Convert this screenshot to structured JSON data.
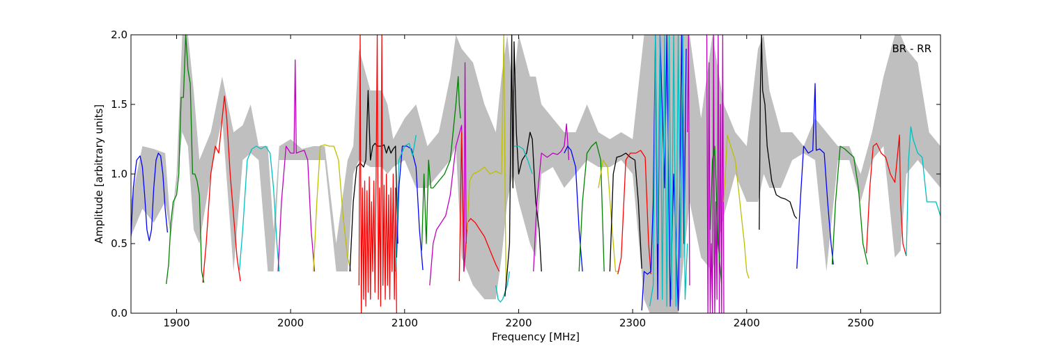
{
  "chart_data": {
    "type": "line",
    "annotation": "BR - RR",
    "xlabel": "Frequency [MHz]",
    "ylabel": "Amplitude [arbitrary units]",
    "xlim": [
      1860,
      2570
    ],
    "ylim": [
      0.0,
      2.0
    ],
    "x_ticks": [
      1900,
      2000,
      2100,
      2200,
      2300,
      2400,
      2500
    ],
    "y_ticks": [
      0.0,
      0.5,
      1.0,
      1.5,
      2.0
    ],
    "x_tick_labels": [
      "1900",
      "2000",
      "2100",
      "2200",
      "2300",
      "2400",
      "2500"
    ],
    "y_tick_labels": [
      "0.0",
      "0.5",
      "1.0",
      "1.5",
      "2.0"
    ],
    "grid": false,
    "colors": {
      "envelope": "#bfbfbf",
      "blue": "#0000ff",
      "green": "#008000",
      "red": "#ff0000",
      "cyan": "#00bfbf",
      "magenta": "#bf00bf",
      "yellow": "#bfbf00",
      "black": "#000000"
    },
    "envelope": {
      "x": [
        1860,
        1870,
        1880,
        1890,
        1895,
        1900,
        1905,
        1910,
        1915,
        1920,
        1930,
        1940,
        1950,
        1958,
        1965,
        1972,
        1980,
        1985,
        1990,
        2000,
        2010,
        2020,
        2030,
        2040,
        2050,
        2055,
        2060,
        2070,
        2080,
        2085,
        2090,
        2100,
        2110,
        2120,
        2130,
        2140,
        2145,
        2150,
        2160,
        2170,
        2180,
        2185,
        2190,
        2195,
        2200,
        2210,
        2215,
        2220,
        2230,
        2240,
        2250,
        2260,
        2270,
        2280,
        2290,
        2300,
        2310,
        2315,
        2320,
        2330,
        2340,
        2350,
        2360,
        2370,
        2380,
        2390,
        2400,
        2410,
        2415,
        2420,
        2430,
        2440,
        2450,
        2460,
        2470,
        2480,
        2490,
        2500,
        2510,
        2520,
        2530,
        2535,
        2540,
        2550,
        2560,
        2570
      ],
      "upper": [
        0.8,
        1.2,
        1.18,
        1.15,
        0.6,
        1.0,
        2.0,
        2.0,
        1.6,
        1.1,
        1.3,
        1.7,
        1.3,
        1.35,
        1.5,
        1.2,
        1.2,
        0.6,
        1.2,
        1.25,
        1.18,
        1.2,
        1.2,
        0.5,
        1.1,
        1.2,
        1.9,
        1.6,
        1.6,
        1.5,
        1.25,
        1.4,
        1.5,
        1.2,
        1.3,
        1.7,
        2.0,
        1.9,
        1.8,
        1.5,
        1.3,
        1.7,
        2.0,
        1.6,
        2.0,
        1.7,
        1.7,
        1.5,
        1.4,
        1.3,
        1.3,
        1.5,
        1.3,
        1.25,
        1.3,
        1.25,
        2.0,
        2.0,
        2.0,
        2.0,
        2.0,
        2.0,
        1.4,
        2.0,
        1.5,
        1.3,
        1.2,
        1.9,
        2.0,
        1.6,
        1.3,
        1.3,
        1.2,
        1.4,
        1.3,
        1.2,
        1.2,
        1.0,
        1.3,
        1.7,
        2.0,
        2.0,
        1.9,
        1.8,
        1.3,
        1.2
      ],
      "lower": [
        0.55,
        0.75,
        0.65,
        0.8,
        0.55,
        0.9,
        1.3,
        1.2,
        0.6,
        0.5,
        1.0,
        1.4,
        0.3,
        1.1,
        1.15,
        1.1,
        0.3,
        0.3,
        1.1,
        1.1,
        1.1,
        1.1,
        1.1,
        0.3,
        0.3,
        1.0,
        1.1,
        1.05,
        1.05,
        1.0,
        1.05,
        1.1,
        0.9,
        0.9,
        1.0,
        1.1,
        1.2,
        0.4,
        0.2,
        0.1,
        0.1,
        0.4,
        0.8,
        1.0,
        0.8,
        0.5,
        0.4,
        1.0,
        1.05,
        0.9,
        1.0,
        1.1,
        1.05,
        1.05,
        1.1,
        1.0,
        0.1,
        0.0,
        0.0,
        0.0,
        0.0,
        0.8,
        0.4,
        0.3,
        0.7,
        1.0,
        0.8,
        0.8,
        1.0,
        0.9,
        0.9,
        1.1,
        1.15,
        1.1,
        0.3,
        1.1,
        1.1,
        0.8,
        1.1,
        1.2,
        0.4,
        0.45,
        1.0,
        1.1,
        1.0,
        0.9
      ]
    },
    "series": [
      {
        "color": "blue",
        "x": [
          1860,
          1862,
          1865,
          1868,
          1870,
          1872,
          1874,
          1876,
          1878,
          1880,
          1882,
          1884,
          1886,
          1888,
          1890,
          1892
        ],
        "y": [
          0.55,
          0.9,
          1.1,
          1.13,
          1.05,
          0.85,
          0.6,
          0.52,
          0.6,
          0.9,
          1.1,
          1.15,
          1.13,
          1.0,
          0.75,
          0.58
        ]
      },
      {
        "color": "green",
        "x": [
          1891,
          1893,
          1895,
          1897,
          1900,
          1902,
          1904,
          1906,
          1908,
          1910,
          1912,
          1914,
          1916,
          1918,
          1920,
          1922,
          1924
        ],
        "y": [
          0.21,
          0.35,
          0.65,
          0.8,
          0.85,
          1.0,
          1.55,
          1.55,
          2.0,
          1.75,
          1.65,
          1.0,
          1.0,
          0.95,
          0.85,
          0.3,
          0.22
        ]
      },
      {
        "color": "red",
        "x": [
          1923,
          1926,
          1930,
          1934,
          1937,
          1940,
          1942,
          1944,
          1947,
          1950,
          1953,
          1956
        ],
        "y": [
          0.22,
          0.5,
          1.0,
          1.2,
          1.15,
          1.4,
          1.56,
          1.4,
          1.0,
          0.7,
          0.4,
          0.23
        ]
      },
      {
        "color": "cyan",
        "x": [
          1955,
          1958,
          1962,
          1966,
          1970,
          1974,
          1978,
          1982,
          1985,
          1988,
          1990
        ],
        "y": [
          0.3,
          0.6,
          1.1,
          1.18,
          1.2,
          1.18,
          1.2,
          1.15,
          0.9,
          0.5,
          0.3
        ]
      },
      {
        "color": "magenta",
        "x": [
          1989,
          1992,
          1996,
          2000,
          2003,
          2004,
          2005,
          2008,
          2012,
          2015,
          2018,
          2021
        ],
        "y": [
          0.3,
          0.8,
          1.2,
          1.15,
          1.15,
          1.82,
          1.15,
          1.16,
          1.17,
          1.1,
          0.6,
          0.3
        ]
      },
      {
        "color": "yellow",
        "x": [
          2020,
          2023,
          2026,
          2030,
          2034,
          2038,
          2042,
          2046,
          2050,
          2053
        ],
        "y": [
          0.3,
          0.8,
          1.2,
          1.21,
          1.2,
          1.2,
          1.1,
          0.7,
          0.4,
          0.3
        ]
      },
      {
        "color": "black",
        "x": [
          2052,
          2055,
          2058,
          2061,
          2064,
          2066,
          2068,
          2070,
          2072,
          2074,
          2076,
          2078,
          2080,
          2082,
          2084,
          2086,
          2088,
          2090,
          2092,
          2094
        ],
        "y": [
          0.3,
          0.8,
          1.05,
          1.08,
          1.05,
          1.1,
          1.6,
          1.1,
          1.2,
          1.22,
          1.2,
          1.2,
          1.2,
          1.21,
          1.15,
          1.2,
          1.15,
          1.18,
          1.2,
          0.5
        ]
      },
      {
        "color": "red",
        "x": [
          2060,
          2061,
          2062,
          2063,
          2064,
          2065,
          2066,
          2067,
          2068,
          2069,
          2070,
          2071,
          2072,
          2073,
          2074,
          2075,
          2076,
          2077,
          2078,
          2079,
          2080,
          2081,
          2082,
          2083,
          2084,
          2085,
          2086,
          2087,
          2088,
          2089,
          2090,
          2091,
          2092,
          2093
        ],
        "y": [
          0.2,
          2.0,
          0.0,
          0.9,
          0.1,
          0.95,
          0.05,
          0.88,
          0.15,
          0.98,
          0.1,
          0.8,
          0.3,
          0.95,
          0.15,
          1.0,
          2.0,
          0.1,
          0.9,
          0.05,
          2.0,
          0.2,
          0.92,
          0.1,
          1.0,
          0.2,
          0.85,
          0.1,
          0.9,
          0.3,
          1.0,
          0.1,
          0.9,
          0.0
        ]
      },
      {
        "color": "blue",
        "x": [
          2093,
          2095,
          2098,
          2102,
          2106,
          2110,
          2113,
          2116
        ],
        "y": [
          0.4,
          0.9,
          1.2,
          1.2,
          1.18,
          1.05,
          0.6,
          0.31
        ]
      },
      {
        "color": "cyan",
        "x": [
          2092,
          2095,
          2100,
          2104,
          2107,
          2110
        ],
        "y": [
          0.3,
          1.1,
          1.2,
          1.22,
          1.13,
          1.28
        ]
      },
      {
        "color": "green",
        "x": [
          2115,
          2117,
          2119,
          2121,
          2123,
          2125,
          2127,
          2130,
          2135,
          2140,
          2145,
          2147,
          2148,
          2149
        ],
        "y": [
          0.45,
          1.0,
          0.5,
          1.1,
          0.9,
          0.9,
          0.92,
          0.95,
          1.0,
          1.1,
          1.5,
          1.7,
          1.5,
          1.4
        ]
      },
      {
        "color": "magenta",
        "x": [
          2122,
          2125,
          2128,
          2132,
          2136,
          2140,
          2145,
          2150,
          2152
        ],
        "y": [
          0.2,
          0.5,
          0.6,
          0.65,
          0.7,
          0.85,
          1.2,
          1.35,
          0.3
        ]
      },
      {
        "color": "red",
        "x": [
          2148,
          2150,
          2152,
          2153,
          2155,
          2158,
          2162,
          2166,
          2170,
          2175,
          2180,
          2183
        ],
        "y": [
          0.23,
          1.3,
          0.3,
          0.4,
          0.65,
          0.68,
          0.65,
          0.6,
          0.55,
          0.45,
          0.35,
          0.3
        ]
      },
      {
        "color": "magenta",
        "x": [
          2152,
          2153,
          2154
        ],
        "y": [
          0.3,
          1.8,
          0.5
        ]
      },
      {
        "color": "yellow",
        "x": [
          2155,
          2157,
          2160,
          2165,
          2170,
          2175,
          2180,
          2185,
          2187,
          2188,
          2189
        ],
        "y": [
          0.6,
          0.95,
          1.0,
          1.02,
          1.05,
          1.0,
          1.02,
          1.0,
          2.0,
          1.0,
          0.2
        ]
      },
      {
        "color": "cyan",
        "x": [
          2180,
          2182,
          2184,
          2186,
          2188,
          2190,
          2192
        ],
        "y": [
          0.2,
          0.1,
          0.08,
          0.1,
          0.15,
          0.2,
          0.3
        ]
      },
      {
        "color": "black",
        "x": [
          2188,
          2190,
          2192,
          2194,
          2195,
          2196,
          2198,
          2200,
          2203,
          2207,
          2210,
          2212,
          2215,
          2218,
          2220
        ],
        "y": [
          0.12,
          0.3,
          0.5,
          2.0,
          0.9,
          1.95,
          1.3,
          1.0,
          1.1,
          1.15,
          1.3,
          1.25,
          0.8,
          0.6,
          0.3
        ]
      },
      {
        "color": "cyan",
        "x": [
          2196,
          2200,
          2204,
          2208,
          2212
        ],
        "y": [
          1.2,
          1.2,
          1.18,
          1.1,
          1.0
        ]
      },
      {
        "color": "magenta",
        "x": [
          2213,
          2216,
          2220,
          2225,
          2230,
          2234,
          2237,
          2240,
          2242,
          2244
        ],
        "y": [
          0.3,
          0.8,
          1.15,
          1.12,
          1.15,
          1.14,
          1.16,
          1.2,
          1.36,
          1.1
        ]
      },
      {
        "color": "blue",
        "x": [
          2240,
          2243,
          2246,
          2250,
          2253,
          2256
        ],
        "y": [
          1.15,
          1.2,
          1.17,
          1.05,
          0.6,
          0.3
        ]
      },
      {
        "color": "green",
        "x": [
          2253,
          2256,
          2260,
          2264,
          2268,
          2272,
          2275
        ],
        "y": [
          0.3,
          0.8,
          1.15,
          1.2,
          1.23,
          1.1,
          0.3
        ]
      },
      {
        "color": "yellow",
        "x": [
          2270,
          2274,
          2278,
          2282,
          2285,
          2288
        ],
        "y": [
          0.9,
          1.1,
          1.05,
          0.6,
          0.3,
          0.3
        ]
      },
      {
        "color": "black",
        "x": [
          2280,
          2283,
          2286,
          2290,
          2294,
          2298,
          2302,
          2305,
          2308
        ],
        "y": [
          0.3,
          1.0,
          1.12,
          1.13,
          1.15,
          1.12,
          1.1,
          0.8,
          0.32
        ]
      },
      {
        "color": "red",
        "x": [
          2287,
          2290,
          2294,
          2298,
          2303,
          2307,
          2311,
          2314,
          2316
        ],
        "y": [
          0.28,
          0.4,
          1.1,
          1.15,
          1.15,
          1.17,
          1.12,
          0.5,
          0.28
        ]
      },
      {
        "color": "blue",
        "x": [
          2308,
          2310,
          2313,
          2316,
          2318,
          2320,
          2322,
          2324,
          2328,
          2330,
          2333,
          2336,
          2340,
          2343,
          2345,
          2347
        ],
        "y": [
          0.02,
          0.3,
          0.28,
          0.3,
          0.8,
          2.0,
          0.1,
          2.0,
          0.9,
          2.0,
          0.05,
          1.0,
          0.02,
          2.0,
          0.5,
          1.9
        ]
      },
      {
        "color": "cyan",
        "x": [
          2315,
          2318,
          2320,
          2322,
          2324,
          2326,
          2328,
          2330,
          2332,
          2334,
          2336,
          2338,
          2340,
          2342,
          2344,
          2346,
          2348
        ],
        "y": [
          0.05,
          0.2,
          2.0,
          0.5,
          2.0,
          0.1,
          2.0,
          0.05,
          2.0,
          0.1,
          2.0,
          0.05,
          2.0,
          0.4,
          2.0,
          0.1,
          0.5
        ]
      },
      {
        "color": "magenta",
        "x": [
          2348,
          2349,
          2350
        ],
        "y": [
          1.3,
          2.0,
          0.2
        ]
      },
      {
        "color": "magenta",
        "x": [
          2365,
          2366,
          2367,
          2368,
          2369,
          2370,
          2371,
          2372,
          2373,
          2374,
          2375,
          2376,
          2377,
          2378,
          2379,
          2380
        ],
        "y": [
          2.0,
          0.0,
          1.8,
          0.0,
          0.5,
          0.0,
          2.0,
          0.0,
          0.8,
          0.1,
          2.0,
          0.0,
          1.5,
          0.0,
          2.0,
          0.0
        ]
      },
      {
        "color": "green",
        "x": [
          2368,
          2370,
          2372,
          2375,
          2378
        ],
        "y": [
          0.6,
          1.1,
          1.2,
          0.5,
          0.2
        ]
      },
      {
        "color": "yellow",
        "x": [
          2380,
          2383,
          2386,
          2390,
          2394,
          2398,
          2400,
          2402
        ],
        "y": [
          0.8,
          1.28,
          1.2,
          1.1,
          0.8,
          0.5,
          0.3,
          0.25
        ]
      },
      {
        "color": "black",
        "x": [
          2411,
          2412,
          2413,
          2414,
          2416,
          2418,
          2422,
          2426,
          2430,
          2434,
          2438,
          2442,
          2444
        ],
        "y": [
          0.6,
          1.6,
          2.0,
          1.6,
          1.5,
          1.2,
          0.95,
          0.85,
          0.83,
          0.82,
          0.8,
          0.7,
          0.68
        ]
      },
      {
        "color": "blue",
        "x": [
          2444,
          2447,
          2450,
          2454,
          2458,
          2460,
          2461,
          2464,
          2468,
          2471,
          2474,
          2476
        ],
        "y": [
          0.32,
          0.8,
          1.2,
          1.15,
          1.17,
          1.65,
          1.17,
          1.18,
          1.15,
          0.8,
          0.5,
          0.35
        ]
      },
      {
        "color": "green",
        "x": [
          2475,
          2478,
          2482,
          2486,
          2490,
          2494,
          2498,
          2502,
          2506
        ],
        "y": [
          0.35,
          0.8,
          1.2,
          1.18,
          1.15,
          1.12,
          0.9,
          0.5,
          0.35
        ]
      },
      {
        "color": "red",
        "x": [
          2505,
          2508,
          2511,
          2514,
          2518,
          2522,
          2526,
          2530,
          2534,
          2535,
          2537,
          2540
        ],
        "y": [
          0.43,
          0.9,
          1.2,
          1.22,
          1.15,
          1.12,
          1.0,
          0.94,
          1.28,
          0.8,
          0.5,
          0.41
        ]
      },
      {
        "color": "cyan",
        "x": [
          2540,
          2542,
          2544,
          2546,
          2550,
          2554,
          2558,
          2562,
          2566,
          2570
        ],
        "y": [
          0.41,
          1.1,
          1.34,
          1.25,
          1.15,
          1.12,
          0.8,
          0.8,
          0.8,
          0.7
        ]
      }
    ]
  }
}
